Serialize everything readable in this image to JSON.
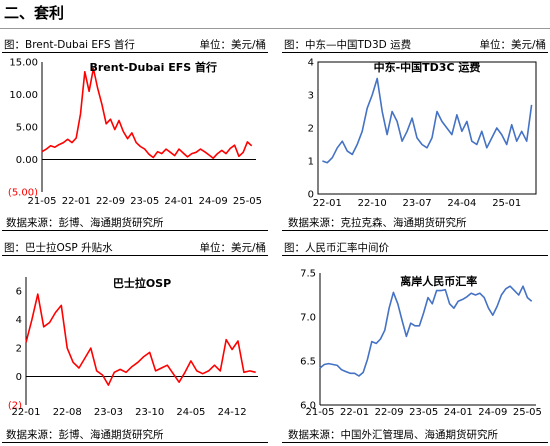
{
  "section": {
    "title": "二、套利"
  },
  "panels": [
    {
      "header_left": "图：Brent-Dubai EFS 首行",
      "header_right": "单位：美元/桶",
      "source": "数据来源：彭博、海通期货研究所"
    },
    {
      "header_left": "图：中东—中国TD3D 运费",
      "header_right": "单位：美元/桶",
      "source": "数据来源：克拉克森、海通期货研究所"
    },
    {
      "header_left": "图：巴士拉OSP 升贴水",
      "header_right": "单位：美元/桶",
      "source": "数据来源：彭博、海通期货研究所"
    },
    {
      "header_left": "图：人民币汇率中间价",
      "header_right": "",
      "source": "数据来源：中国外汇管理局、海通期货研究所"
    }
  ],
  "chart_data": [
    {
      "type": "line",
      "title": "Brent-Dubai EFS 首行",
      "color": "#FF0000",
      "x_ticks": [
        "21-05",
        "22-01",
        "22-09",
        "23-05",
        "24-01",
        "24-09",
        "25-05"
      ],
      "y_ticks": [
        "15.00",
        "10.00",
        "5.00",
        "0.00",
        "(5.00)"
      ],
      "ylim": [
        -5,
        15
      ],
      "y_tick_colors": [
        "#000000",
        "#000000",
        "#000000",
        "#000000",
        "#FF0000"
      ],
      "series": [
        {
          "x": [
            "2021-05",
            "2021-06",
            "2021-07",
            "2021-08",
            "2021-09",
            "2021-10",
            "2021-11",
            "2021-12",
            "2022-01",
            "2022-02",
            "2022-03",
            "2022-04",
            "2022-05",
            "2022-06",
            "2022-07",
            "2022-08",
            "2022-09",
            "2022-10",
            "2022-11",
            "2022-12",
            "2023-01",
            "2023-02",
            "2023-03",
            "2023-04",
            "2023-05",
            "2023-06",
            "2023-07",
            "2023-08",
            "2023-09",
            "2023-10",
            "2023-11",
            "2023-12",
            "2024-01",
            "2024-02",
            "2024-03",
            "2024-04",
            "2024-05",
            "2024-06",
            "2024-07",
            "2024-08",
            "2024-09",
            "2024-10",
            "2024-11",
            "2024-12",
            "2025-01",
            "2025-02",
            "2025-03",
            "2025-04",
            "2025-05",
            "2025-06"
          ],
          "values": [
            1.2,
            1.6,
            2.1,
            1.9,
            2.3,
            2.6,
            3.1,
            2.6,
            3.3,
            7.0,
            13.5,
            10.5,
            14.0,
            11.0,
            8.5,
            5.5,
            6.2,
            4.6,
            6.0,
            4.3,
            3.2,
            4.1,
            2.6,
            2.0,
            1.6,
            0.8,
            0.3,
            1.2,
            0.9,
            1.6,
            1.1,
            0.6,
            1.6,
            1.0,
            0.4,
            0.9,
            1.1,
            1.6,
            1.2,
            0.7,
            0.2,
            0.9,
            1.4,
            0.9,
            1.7,
            2.2,
            0.5,
            1.1,
            2.7,
            2.1
          ]
        }
      ]
    },
    {
      "type": "line",
      "title": "中东-中国TD3C 运费",
      "color": "#4472C4",
      "x_ticks": [
        "22-01",
        "22-10",
        "23-07",
        "24-04",
        "25-01"
      ],
      "y_ticks": [
        "4",
        "3",
        "2",
        "1",
        "0"
      ],
      "ylim": [
        0,
        4
      ],
      "series": [
        {
          "x": [
            "2021-12",
            "2022-01",
            "2022-02",
            "2022-03",
            "2022-04",
            "2022-05",
            "2022-06",
            "2022-07",
            "2022-08",
            "2022-09",
            "2022-10",
            "2022-11",
            "2022-12",
            "2023-01",
            "2023-02",
            "2023-03",
            "2023-04",
            "2023-05",
            "2023-06",
            "2023-07",
            "2023-08",
            "2023-09",
            "2023-10",
            "2023-11",
            "2023-12",
            "2024-01",
            "2024-02",
            "2024-03",
            "2024-04",
            "2024-05",
            "2024-06",
            "2024-07",
            "2024-08",
            "2024-09",
            "2024-10",
            "2024-11",
            "2024-12",
            "2025-01",
            "2025-02",
            "2025-03",
            "2025-04",
            "2025-05",
            "2025-06"
          ],
          "values": [
            1.0,
            0.95,
            1.1,
            1.4,
            1.6,
            1.3,
            1.2,
            1.5,
            1.9,
            2.6,
            3.0,
            3.5,
            2.5,
            1.8,
            2.5,
            2.2,
            1.6,
            1.9,
            2.3,
            1.7,
            1.5,
            1.4,
            1.7,
            2.5,
            2.2,
            2.0,
            1.8,
            2.4,
            1.9,
            2.2,
            1.6,
            1.5,
            1.9,
            1.4,
            1.7,
            2.0,
            1.8,
            1.5,
            2.1,
            1.6,
            1.9,
            1.6,
            2.7
          ]
        }
      ]
    },
    {
      "type": "line",
      "title": "巴士拉OSP",
      "color": "#FF0000",
      "x_ticks": [
        "22-01",
        "22-08",
        "23-03",
        "23-10",
        "24-05",
        "24-12"
      ],
      "y_ticks": [
        "6",
        "4",
        "2",
        "0",
        "(2)"
      ],
      "ylim": [
        -2,
        7
      ],
      "y_tick_colors": [
        "#000000",
        "#000000",
        "#000000",
        "#000000",
        "#FF0000"
      ],
      "series": [
        {
          "x": [
            "2022-01",
            "2022-02",
            "2022-03",
            "2022-04",
            "2022-05",
            "2022-06",
            "2022-07",
            "2022-08",
            "2022-09",
            "2022-10",
            "2022-11",
            "2022-12",
            "2023-01",
            "2023-02",
            "2023-03",
            "2023-04",
            "2023-05",
            "2023-06",
            "2023-07",
            "2023-08",
            "2023-09",
            "2023-10",
            "2023-11",
            "2023-12",
            "2024-01",
            "2024-02",
            "2024-03",
            "2024-04",
            "2024-05",
            "2024-06",
            "2024-07",
            "2024-08",
            "2024-09",
            "2024-10",
            "2024-11",
            "2024-12",
            "2025-01",
            "2025-02",
            "2025-03",
            "2025-04"
          ],
          "values": [
            2.4,
            4.0,
            5.8,
            3.5,
            3.8,
            4.5,
            5.0,
            2.0,
            1.0,
            0.6,
            1.3,
            2.0,
            0.4,
            0.1,
            -0.6,
            0.3,
            0.5,
            0.3,
            0.7,
            1.0,
            1.4,
            1.7,
            0.4,
            0.6,
            0.8,
            0.2,
            -0.4,
            0.3,
            1.1,
            0.4,
            0.2,
            0.4,
            0.8,
            0.4,
            2.6,
            1.9,
            2.5,
            0.3,
            0.4,
            0.3
          ]
        }
      ]
    },
    {
      "type": "line",
      "title": "离岸人民币汇率",
      "color": "#4472C4",
      "x_ticks": [
        "21-05",
        "22-01",
        "22-09",
        "23-05",
        "24-01",
        "24-09",
        "25-05"
      ],
      "y_ticks": [
        "7.5",
        "7.0",
        "6.5",
        "6.0"
      ],
      "ylim": [
        6.0,
        7.5
      ],
      "series": [
        {
          "x": [
            "2021-05",
            "2021-06",
            "2021-07",
            "2021-08",
            "2021-09",
            "2021-10",
            "2021-11",
            "2021-12",
            "2022-01",
            "2022-02",
            "2022-03",
            "2022-04",
            "2022-05",
            "2022-06",
            "2022-07",
            "2022-08",
            "2022-09",
            "2022-10",
            "2022-11",
            "2022-12",
            "2023-01",
            "2023-02",
            "2023-03",
            "2023-04",
            "2023-05",
            "2023-06",
            "2023-07",
            "2023-08",
            "2023-09",
            "2023-10",
            "2023-11",
            "2023-12",
            "2024-01",
            "2024-02",
            "2024-03",
            "2024-04",
            "2024-05",
            "2024-06",
            "2024-07",
            "2024-08",
            "2024-09",
            "2024-10",
            "2024-11",
            "2024-12",
            "2025-01",
            "2025-02",
            "2025-03",
            "2025-04",
            "2025-05",
            "2025-06"
          ],
          "values": [
            6.42,
            6.46,
            6.47,
            6.46,
            6.45,
            6.4,
            6.38,
            6.36,
            6.36,
            6.33,
            6.37,
            6.52,
            6.72,
            6.7,
            6.75,
            6.85,
            7.1,
            7.28,
            7.15,
            6.96,
            6.78,
            6.93,
            6.9,
            6.9,
            7.05,
            7.22,
            7.15,
            7.3,
            7.3,
            7.31,
            7.15,
            7.1,
            7.18,
            7.2,
            7.23,
            7.27,
            7.25,
            7.27,
            7.22,
            7.1,
            7.02,
            7.12,
            7.25,
            7.32,
            7.35,
            7.3,
            7.25,
            7.35,
            7.22,
            7.18
          ]
        }
      ]
    }
  ]
}
